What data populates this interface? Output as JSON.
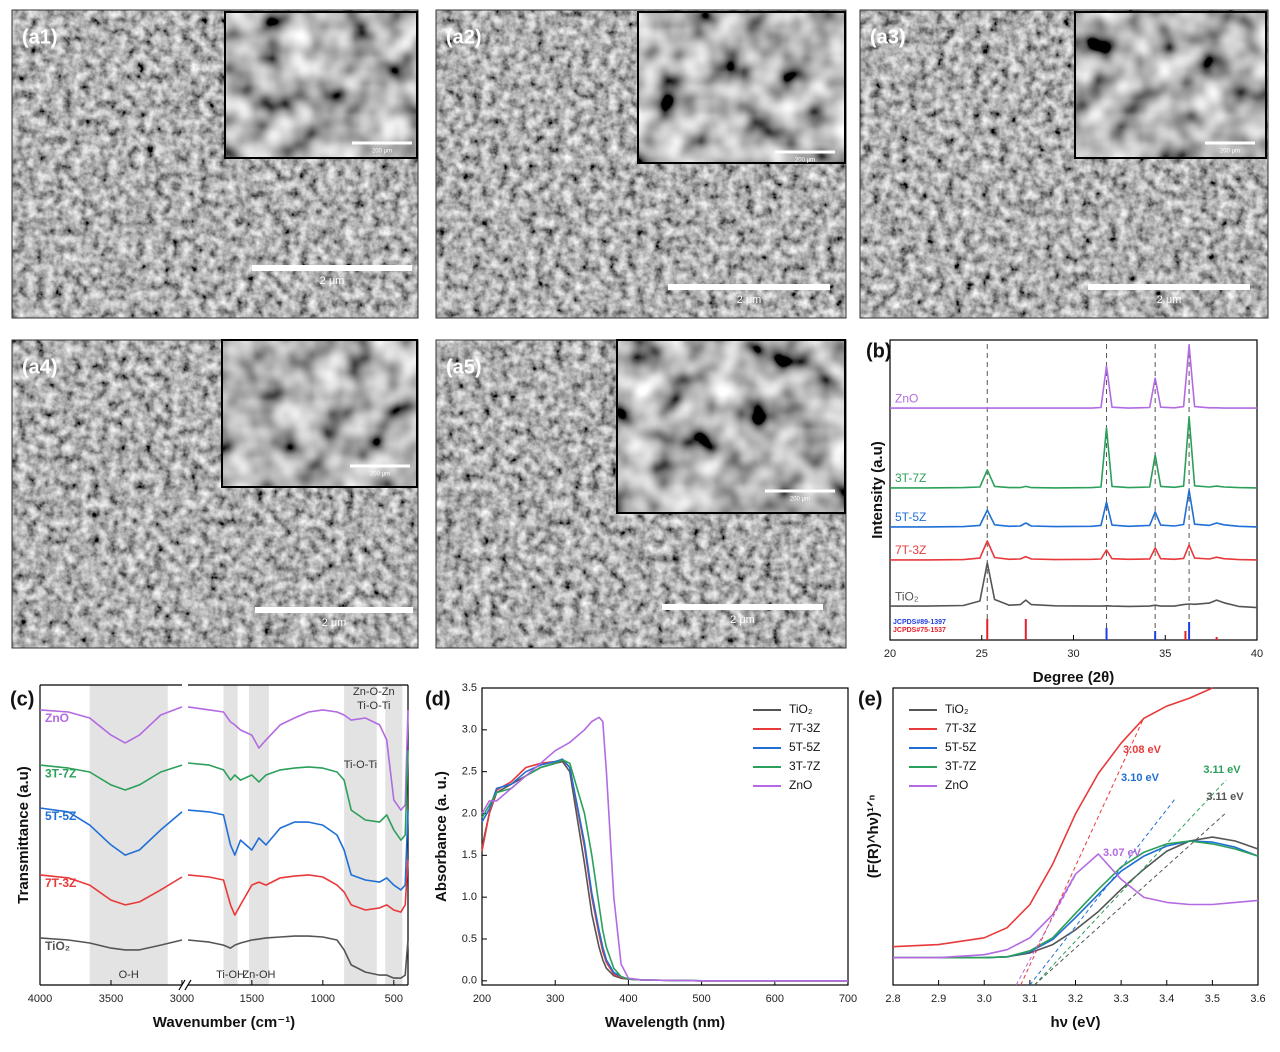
{
  "sem_panels": [
    {
      "label": "(a1)",
      "scale_bar": "2 μm",
      "inset_scale_bar": "200 μm"
    },
    {
      "label": "(a2)",
      "scale_bar": "2 μm",
      "inset_scale_bar": "200 μm"
    },
    {
      "label": "(a3)",
      "scale_bar": "2 μm",
      "inset_scale_bar": "200 μm"
    },
    {
      "label": "(a4)",
      "scale_bar": "2 μm",
      "inset_scale_bar": "200 μm"
    },
    {
      "label": "(a5)",
      "scale_bar": "2 μm",
      "inset_scale_bar": "200 μm"
    }
  ],
  "chart_data": [
    {
      "type": "line",
      "panel_label": "(b)",
      "xlabel": "Degree (2θ)",
      "ylabel": "Intensity (a.u)",
      "xlim": [
        20,
        40
      ],
      "ylim": [
        0,
        100
      ],
      "xticks": [
        20,
        25,
        30,
        35,
        40
      ],
      "x": [
        20,
        22,
        24,
        24.9,
        25.3,
        25.7,
        26.5,
        27.1,
        27.4,
        27.7,
        29,
        31,
        31.5,
        31.8,
        32.1,
        33,
        34.15,
        34.45,
        34.75,
        35.5,
        36.0,
        36.3,
        36.6,
        37.4,
        37.8,
        38.2,
        39,
        40
      ],
      "series": [
        {
          "name": "ZnO",
          "color": "#b36ae2",
          "values": [
            77.3,
            77.3,
            77.3,
            77.3,
            77.3,
            77.3,
            77.3,
            77.3,
            77.3,
            77.3,
            77.3,
            77.3,
            77.5,
            91.3,
            77.6,
            77.3,
            77.5,
            87.3,
            77.6,
            77.4,
            77.8,
            98.3,
            77.8,
            77.4,
            77.4,
            77.3,
            77.3,
            77.3
          ]
        },
        {
          "name": "3T-7Z",
          "color": "#2ca05a",
          "values": [
            50.7,
            50.7,
            50.8,
            51,
            56.7,
            51.2,
            50.8,
            50.8,
            51.2,
            50.8,
            50.7,
            50.8,
            51,
            70.7,
            51.2,
            50.8,
            51,
            61.7,
            51.2,
            50.9,
            51.3,
            74.3,
            51.4,
            51,
            51.3,
            51,
            50.8,
            50.7
          ]
        },
        {
          "name": "5T-5Z",
          "color": "#1f6fd6",
          "values": [
            37.7,
            37.7,
            37.8,
            38.2,
            43.3,
            38.4,
            37.9,
            38,
            39,
            38,
            37.8,
            37.9,
            38.2,
            46,
            38.3,
            37.9,
            38.2,
            42.7,
            38.3,
            38,
            38.5,
            50,
            38.6,
            38.2,
            39,
            38.4,
            37.9,
            37.7
          ]
        },
        {
          "name": "7T-3Z",
          "color": "#e8393b",
          "values": [
            26.7,
            26.7,
            26.8,
            27.3,
            33,
            27.5,
            26.9,
            27,
            27.8,
            27,
            26.8,
            26.9,
            27,
            30,
            27.1,
            26.9,
            27,
            30.7,
            27.1,
            26.9,
            27.2,
            31.7,
            27.3,
            27,
            27.6,
            27.1,
            26.8,
            26.7
          ]
        },
        {
          "name": "TiO₂",
          "color": "#555555",
          "values": [
            11.3,
            11.3,
            11.5,
            13,
            25.7,
            13.5,
            11.6,
            11.8,
            13.3,
            11.8,
            11.4,
            11.3,
            11.3,
            11.4,
            11.3,
            11.2,
            11.3,
            11.6,
            11.3,
            11.3,
            11.8,
            12,
            11.9,
            12.3,
            13.3,
            12.4,
            11.2,
            10.8
          ]
        }
      ],
      "guide_lines": [
        25.3,
        31.8,
        34.45,
        36.3
      ],
      "reference_patterns": [
        {
          "name": "JCPDS#89-1397",
          "color": "#1f3fe0",
          "positions": [
            31.8,
            34.45,
            36.3
          ],
          "heights": [
            4,
            3,
            6
          ]
        },
        {
          "name": "JCPDS#75-1537",
          "color": "#e0202a",
          "positions": [
            25.3,
            27.4,
            36.1,
            37.8
          ],
          "heights": [
            7,
            7,
            3,
            1
          ]
        }
      ]
    },
    {
      "type": "line",
      "panel_label": "(c)",
      "xlabel": "Wavenumber (cm⁻¹)",
      "ylabel": "Transmittance (a.u)",
      "xlim": [
        4000,
        400
      ],
      "x_break": [
        3000,
        1950
      ],
      "ylim": [
        0,
        100
      ],
      "xticks": [
        4000,
        3500,
        3000,
        1500,
        1000,
        500
      ],
      "x": [
        4000,
        3800,
        3650,
        3500,
        3400,
        3300,
        3150,
        3000,
        2500,
        1950,
        1800,
        1700,
        1650,
        1620,
        1580,
        1500,
        1450,
        1400,
        1300,
        1200,
        1100,
        1000,
        900,
        850,
        800,
        700,
        600,
        550,
        500,
        450,
        420,
        400
      ],
      "series": [
        {
          "name": "ZnO",
          "color": "#b36ae2",
          "values": [
            91.7,
            91,
            89,
            83.3,
            80.7,
            83.3,
            90,
            92.7,
            null,
            92.7,
            91.7,
            91,
            87.7,
            86.7,
            85,
            83.3,
            79,
            81.7,
            86.7,
            89,
            91,
            91.7,
            91,
            90,
            88.3,
            89,
            86.7,
            81.7,
            61.7,
            58.3,
            60,
            91.7
          ]
        },
        {
          "name": "3T-7Z",
          "color": "#2ca05a",
          "values": [
            73.3,
            72.3,
            71,
            66.7,
            65,
            66.7,
            71,
            73.3,
            null,
            74,
            73.3,
            71.7,
            68.3,
            70,
            68.3,
            70,
            67.7,
            70,
            71.7,
            72.3,
            72.7,
            72.3,
            71,
            68.3,
            58.3,
            55,
            54.3,
            56.7,
            51.7,
            48.3,
            50,
            78.3
          ]
        },
        {
          "name": "5T-5Z",
          "color": "#1f6fd6",
          "values": [
            59,
            57.7,
            53.3,
            46.7,
            43.3,
            45,
            51.7,
            57.7,
            null,
            58.3,
            57.7,
            56.7,
            46.7,
            43.3,
            48.3,
            45,
            49,
            46.7,
            52.3,
            54.3,
            54.3,
            53.3,
            50,
            45,
            36.7,
            35,
            34.3,
            35.7,
            33.3,
            31.7,
            33.3,
            58.3
          ]
        },
        {
          "name": "7T-3Z",
          "color": "#e8393b",
          "values": [
            36.7,
            35.7,
            33.3,
            28.3,
            26.7,
            27.7,
            31.7,
            36,
            null,
            36.7,
            36,
            35,
            26.7,
            23.3,
            26.7,
            33.3,
            34.3,
            33.3,
            35.7,
            36.3,
            36.7,
            36,
            33.3,
            31,
            26.7,
            25,
            25.7,
            26.7,
            25,
            24.3,
            26.7,
            41.7
          ]
        },
        {
          "name": "TiO₂",
          "color": "#555555",
          "values": [
            15.7,
            15,
            14,
            12.3,
            11.7,
            11.7,
            13.3,
            15,
            null,
            15,
            14.3,
            13.3,
            12.3,
            13.3,
            14,
            15,
            15.3,
            15.7,
            16,
            16.3,
            16.3,
            16,
            15,
            11.7,
            6.7,
            4.3,
            3.3,
            3.3,
            2.3,
            2.3,
            3.3,
            15
          ]
        }
      ],
      "bands": [
        {
          "from": 3650,
          "to": 3100,
          "labels": [
            "O-H"
          ]
        },
        {
          "from": 1700,
          "to": 1600,
          "labels": [
            "Ti-OH"
          ]
        },
        {
          "from": 1520,
          "to": 1380,
          "labels": [
            "Zn-OH"
          ]
        },
        {
          "from": 850,
          "to": 620,
          "labels": [
            "Ti-O-Ti"
          ]
        },
        {
          "from": 560,
          "to": 440,
          "labels": [
            "Zn-O-Zn",
            "Ti-O-Ti"
          ]
        }
      ]
    },
    {
      "type": "line",
      "panel_label": "(d)",
      "xlabel": "Wavelength (nm)",
      "ylabel": "Absorbance (a. u.)",
      "xlim": [
        200,
        700
      ],
      "ylim": [
        -0.05,
        3.5
      ],
      "xticks": [
        200,
        300,
        400,
        500,
        600,
        700
      ],
      "yticks": [
        {
          "value": 0,
          "label": "0.0"
        },
        0.5,
        {
          "value": 1,
          "label": "1.0"
        },
        1.5,
        {
          "value": 2,
          "label": "2.0"
        },
        2.5,
        {
          "value": 3,
          "label": "3.0"
        },
        3.5
      ],
      "legend": "upper right",
      "x": [
        200,
        210,
        220,
        240,
        260,
        280,
        300,
        310,
        320,
        340,
        350,
        360,
        365,
        370,
        380,
        390,
        400,
        420,
        500,
        600,
        700
      ],
      "series": [
        {
          "name": "TiO₂",
          "color": "#555555",
          "values": [
            1.6,
            2.0,
            2.25,
            2.35,
            2.45,
            2.55,
            2.6,
            2.62,
            2.5,
            1.4,
            0.8,
            0.4,
            0.25,
            0.15,
            0.06,
            0.03,
            0.02,
            0.01,
            0,
            0,
            0
          ]
        },
        {
          "name": "7T-3Z",
          "color": "#e8393b",
          "values": [
            1.55,
            2.0,
            2.28,
            2.38,
            2.55,
            2.6,
            2.62,
            2.64,
            2.55,
            1.6,
            1.0,
            0.55,
            0.35,
            0.22,
            0.08,
            0.04,
            0.02,
            0.01,
            0,
            0,
            0
          ]
        },
        {
          "name": "5T-5Z",
          "color": "#1f6fd6",
          "values": [
            1.9,
            2.05,
            2.3,
            2.35,
            2.5,
            2.58,
            2.62,
            2.65,
            2.55,
            1.65,
            1.05,
            0.6,
            0.4,
            0.25,
            0.1,
            0.05,
            0.02,
            0.01,
            0,
            0,
            0
          ]
        },
        {
          "name": "3T-7Z",
          "color": "#2ca05a",
          "values": [
            1.95,
            2.1,
            2.25,
            2.3,
            2.45,
            2.55,
            2.6,
            2.64,
            2.6,
            2.0,
            1.5,
            0.9,
            0.6,
            0.4,
            0.15,
            0.05,
            0.02,
            0.01,
            0,
            0,
            0
          ]
        },
        {
          "name": "ZnO",
          "color": "#b36ae2",
          "values": [
            2.0,
            2.15,
            2.15,
            2.3,
            2.45,
            2.6,
            2.75,
            2.8,
            2.85,
            3.0,
            3.1,
            3.15,
            3.1,
            2.5,
            1.0,
            0.2,
            0.03,
            0.01,
            0,
            0,
            0
          ]
        }
      ]
    },
    {
      "type": "line",
      "panel_label": "(e)",
      "xlabel": "hν (eV)",
      "ylabel": "(F(R)^hν)¹ᐟⁿ",
      "xlim": [
        2.8,
        3.6
      ],
      "ylim": [
        0,
        100
      ],
      "xticks": [
        2.8,
        2.9,
        {
          "value": 3,
          "label": "3.0"
        },
        3.1,
        3.2,
        3.3,
        3.4,
        3.5,
        3.6
      ],
      "legend": "upper left",
      "x": [
        2.8,
        2.9,
        3.0,
        3.05,
        3.1,
        3.15,
        3.2,
        3.25,
        3.3,
        3.35,
        3.4,
        3.45,
        3.5,
        3.55,
        3.6
      ],
      "series": [
        {
          "name": "TiO₂",
          "color": "#555555",
          "values": [
            9.2,
            9.2,
            9.2,
            9.5,
            10.8,
            13.6,
            18.6,
            24.7,
            32.2,
            39,
            45.1,
            48.5,
            49.8,
            48.5,
            45.8
          ]
        },
        {
          "name": "7T-3Z",
          "color": "#e8393b",
          "values": [
            12.9,
            13.6,
            15.9,
            19.3,
            27.1,
            40.7,
            57.6,
            71.2,
            81.4,
            89.8,
            93.9,
            96.6,
            100,
            null,
            null
          ]
        },
        {
          "name": "5T-5Z",
          "color": "#1f6fd6",
          "values": [
            9.2,
            9.2,
            9.2,
            9.5,
            11.2,
            15.3,
            22.7,
            30.5,
            38.3,
            43.4,
            46.8,
            48.5,
            48.1,
            46.4,
            43.4
          ]
        },
        {
          "name": "3T-7Z",
          "color": "#2ca05a",
          "values": [
            9.2,
            9.2,
            9.2,
            9.5,
            11.5,
            15.9,
            24.1,
            32.2,
            39.7,
            44.7,
            47.5,
            48.5,
            47.5,
            45.8,
            43.4
          ]
        },
        {
          "name": "ZnO",
          "color": "#b36ae2",
          "values": [
            9.2,
            9.2,
            10.2,
            11.9,
            15.9,
            23.7,
            37.3,
            44.1,
            35.6,
            29.5,
            27.8,
            27.1,
            27.1,
            27.8,
            28.5
          ]
        }
      ],
      "tangents": [
        {
          "label": "3.08 eV",
          "color": "#e8393b",
          "x": [
            3.08,
            3.35
          ],
          "y": [
            0,
            90
          ]
        },
        {
          "label": "3.10 eV",
          "color": "#1f6fd6",
          "x": [
            3.1,
            3.42
          ],
          "y": [
            0,
            63
          ]
        },
        {
          "label": "3.11 eV",
          "color": "#2ca05a",
          "x": [
            3.11,
            3.53
          ],
          "y": [
            0,
            69
          ]
        },
        {
          "label": "3.11 eV",
          "color": "#555555",
          "x": [
            3.11,
            3.53
          ],
          "y": [
            0,
            58
          ]
        },
        {
          "label": "3.07 eV",
          "color": "#b36ae2",
          "x": [
            3.07,
            3.2
          ],
          "y": [
            0,
            37
          ]
        }
      ]
    }
  ]
}
